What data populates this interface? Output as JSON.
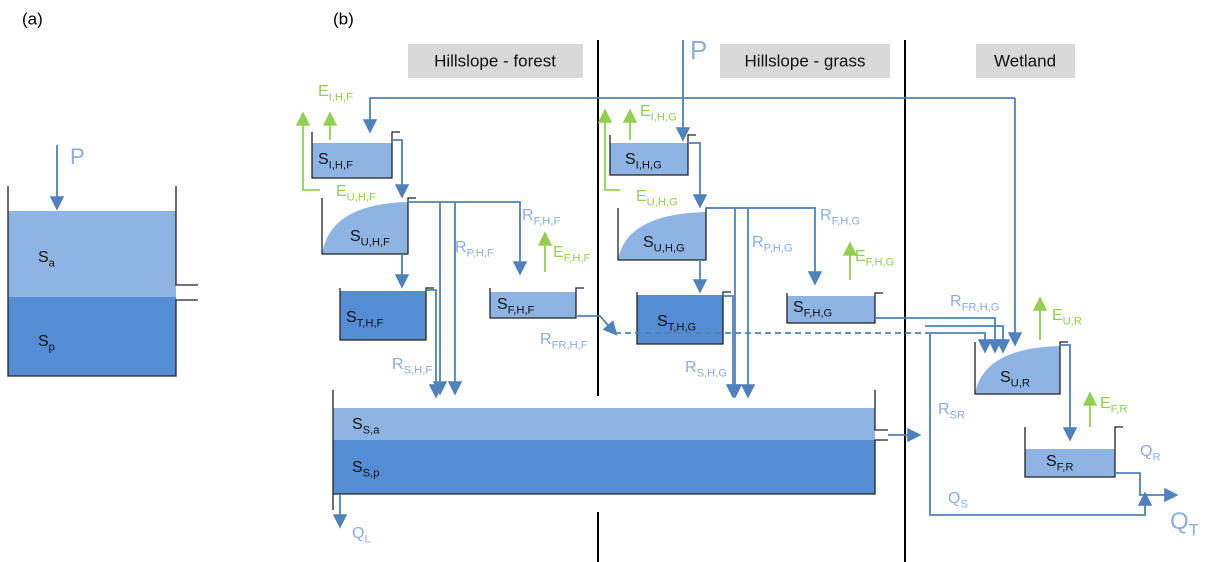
{
  "panel_a": {
    "label": "(a)",
    "input": "P",
    "stores": [
      {
        "main": "S",
        "sub": "a"
      },
      {
        "main": "S",
        "sub": "p"
      }
    ]
  },
  "panel_b": {
    "label": "(b)",
    "input": "P",
    "regions": [
      "Hillslope - forest",
      "Hillslope - grass",
      "Wetland"
    ],
    "stores": [
      {
        "main": "S",
        "sub": "I,H,F"
      },
      {
        "main": "S",
        "sub": "U,H,F"
      },
      {
        "main": "S",
        "sub": "T,H,F"
      },
      {
        "main": "S",
        "sub": "F,H,F"
      },
      {
        "main": "S",
        "sub": "I,H,G"
      },
      {
        "main": "S",
        "sub": "U,H,G"
      },
      {
        "main": "S",
        "sub": "T,H,G"
      },
      {
        "main": "S",
        "sub": "F,H,G"
      },
      {
        "main": "S",
        "sub": "U,R"
      },
      {
        "main": "S",
        "sub": "F,R"
      },
      {
        "main": "S",
        "sub": "S,a"
      },
      {
        "main": "S",
        "sub": "S,p"
      }
    ],
    "evaporation": [
      {
        "main": "E",
        "sub": "I,H,F"
      },
      {
        "main": "E",
        "sub": "U,H,F"
      },
      {
        "main": "E",
        "sub": "F,H,F"
      },
      {
        "main": "E",
        "sub": "I,H,G"
      },
      {
        "main": "E",
        "sub": "U,H,G"
      },
      {
        "main": "E",
        "sub": "F,H,G"
      },
      {
        "main": "E",
        "sub": "U,R"
      },
      {
        "main": "E",
        "sub": "F,R"
      }
    ],
    "fluxes": [
      {
        "main": "R",
        "sub": "F,H,F"
      },
      {
        "main": "R",
        "sub": "P,H,F"
      },
      {
        "main": "R",
        "sub": "FR,H,F"
      },
      {
        "main": "R",
        "sub": "S,H,F"
      },
      {
        "main": "R",
        "sub": "F,H,G"
      },
      {
        "main": "R",
        "sub": "P,H,G"
      },
      {
        "main": "R",
        "sub": "FR,H,G"
      },
      {
        "main": "R",
        "sub": "S,H,G"
      },
      {
        "main": "R",
        "sub": "SR"
      },
      {
        "main": "Q",
        "sub": "R"
      },
      {
        "main": "Q",
        "sub": "S"
      },
      {
        "main": "Q",
        "sub": "T"
      },
      {
        "main": "Q",
        "sub": "L"
      }
    ]
  }
}
